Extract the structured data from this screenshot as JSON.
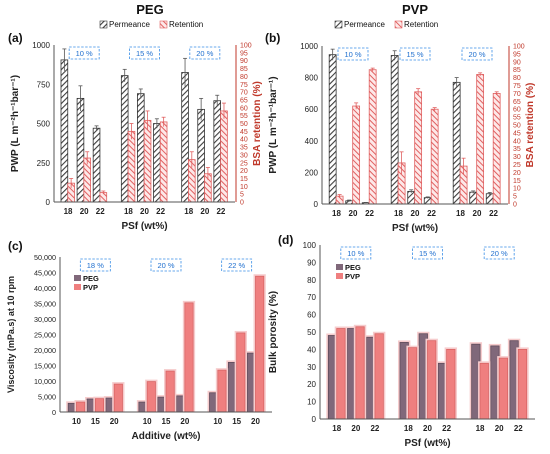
{
  "colors": {
    "hatch": "#4a4a4a",
    "red": "#e06060",
    "pink_bg": "#f6cccd",
    "peg_bar": "#80687a",
    "pvp_bar": "#ef7f7f",
    "dash_box": "#3a8ee6",
    "retention_axis": "#c0392b"
  },
  "chart_data": [
    {
      "panel": "(a)",
      "type": "bar",
      "title": "PEG",
      "legend": [
        "Permeance",
        "Retention"
      ],
      "legend_position": "top-center",
      "categories": [
        "18",
        "20",
        "22",
        "18",
        "20",
        "22",
        "18",
        "20",
        "22"
      ],
      "groups": [
        "10 %",
        "15 %",
        "20 %"
      ],
      "xlabel": "PSf (wt%)",
      "ylabel": "PWP (L m⁻²h⁻¹bar⁻¹)",
      "y2label": "BSA retention (%)",
      "ylim": [
        0,
        1000
      ],
      "yticks": [
        "0",
        "250",
        "500",
        "750",
        "1000"
      ],
      "y2lim": [
        0,
        100
      ],
      "y2ticks": [
        "0",
        "5",
        "10",
        "15",
        "20",
        "25",
        "30",
        "35",
        "40",
        "45",
        "50",
        "55",
        "60",
        "65",
        "70",
        "75",
        "80",
        "85",
        "90",
        "95",
        "100"
      ],
      "series": [
        {
          "name": "Permeance",
          "axis": "left",
          "values": [
            905,
            660,
            470,
            805,
            690,
            500,
            825,
            590,
            645
          ],
          "errors": [
            70,
            80,
            15,
            40,
            30,
            30,
            90,
            70,
            35
          ]
        },
        {
          "name": "Retention",
          "axis": "right",
          "values": [
            12,
            28,
            6,
            45,
            52,
            51,
            27,
            18,
            58
          ],
          "errors": [
            3,
            4,
            1,
            5,
            6,
            3,
            5,
            4,
            5
          ]
        }
      ]
    },
    {
      "panel": "(b)",
      "type": "bar",
      "title": "PVP",
      "legend": [
        "Permeance",
        "Retention"
      ],
      "legend_position": "top-center",
      "categories": [
        "18",
        "20",
        "22",
        "18",
        "20",
        "22",
        "18",
        "20",
        "22"
      ],
      "groups": [
        "10 %",
        "15 %",
        "20 %"
      ],
      "xlabel": "PSf (wt%)",
      "ylabel": "PWP (L m⁻²h⁻¹bar⁻¹)",
      "y2label": "BSA retention (%)",
      "ylim": [
        0,
        1000
      ],
      "yticks": [
        "0",
        "200",
        "400",
        "600",
        "800",
        "1000"
      ],
      "y2lim": [
        0,
        100
      ],
      "y2ticks": [
        "0",
        "5",
        "10",
        "15",
        "20",
        "25",
        "30",
        "35",
        "40",
        "45",
        "50",
        "55",
        "60",
        "65",
        "70",
        "75",
        "80",
        "85",
        "90",
        "95",
        "100"
      ],
      "series": [
        {
          "name": "Permeance",
          "axis": "left",
          "values": [
            945,
            20,
            8,
            940,
            80,
            40,
            770,
            75,
            65
          ],
          "errors": [
            35,
            5,
            2,
            30,
            10,
            5,
            30,
            8,
            8
          ]
        },
        {
          "name": "Retention",
          "axis": "right",
          "values": [
            5,
            62,
            85,
            26,
            71,
            60,
            24,
            82,
            70
          ],
          "errors": [
            1,
            2,
            1,
            7,
            2,
            1,
            5,
            1,
            1
          ]
        }
      ]
    },
    {
      "panel": "(c)",
      "type": "bar",
      "legend": [
        "PEG",
        "PVP"
      ],
      "legend_position": "top-left",
      "categories": [
        "10",
        "15",
        "20",
        "10",
        "15",
        "20",
        "10",
        "15",
        "20"
      ],
      "groups": [
        "18 %",
        "20 %",
        "22 %"
      ],
      "xlabel": "Additive (wt%)",
      "ylabel": "Viscosity (mPa.s) at 10 rpm",
      "ylim": [
        0,
        50000
      ],
      "yticks": [
        "0",
        "5,000",
        "10,000",
        "15,000",
        "20,000",
        "25,000",
        "30,000",
        "35,000",
        "40,000",
        "45,000",
        "50,000"
      ],
      "series": [
        {
          "name": "PEG",
          "values": [
            2800,
            4200,
            4500,
            3200,
            4800,
            5200,
            6200,
            16000,
            19000
          ]
        },
        {
          "name": "PVP",
          "values": [
            3200,
            4300,
            9000,
            9800,
            13200,
            35200,
            13500,
            25500,
            43800
          ]
        }
      ]
    },
    {
      "panel": "(d)",
      "type": "bar",
      "legend": [
        "PEG",
        "PVP"
      ],
      "legend_position": "top-left",
      "categories": [
        "18",
        "20",
        "22",
        "18",
        "20",
        "22",
        "18",
        "20",
        "22"
      ],
      "groups": [
        "10 %",
        "15 %",
        "20 %"
      ],
      "xlabel": "PSf (wt%)",
      "ylabel": "Bulk porosity (%)",
      "ylim": [
        0,
        100
      ],
      "yticks": [
        "0",
        "10",
        "20",
        "30",
        "40",
        "50",
        "60",
        "70",
        "80",
        "90",
        "100"
      ],
      "series": [
        {
          "name": "PEG",
          "values": [
            48,
            52,
            47,
            44,
            49,
            32,
            43,
            42,
            45
          ]
        },
        {
          "name": "PVP",
          "values": [
            52,
            53,
            49,
            41,
            45,
            40,
            32,
            35,
            40
          ]
        }
      ]
    }
  ]
}
